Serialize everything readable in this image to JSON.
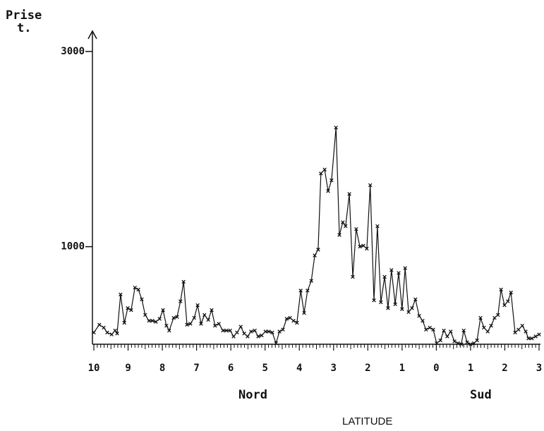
{
  "chart_data": {
    "type": "line",
    "ylabel": [
      "Prise",
      "t."
    ],
    "xlabel": "LATITUDE",
    "annotations": [
      "Nord",
      "Sud"
    ],
    "color": "#111111",
    "xlim": [
      10,
      -3
    ],
    "ylim": [
      0,
      3000
    ],
    "yticks": [
      1000,
      3000
    ],
    "xticks": [
      10,
      9,
      8,
      7,
      6,
      5,
      4,
      3,
      2,
      1,
      0,
      {
        "value": -1,
        "label": "1"
      },
      {
        "value": -2,
        "label": "2"
      },
      {
        "value": -3,
        "label": "3"
      }
    ],
    "series": [
      {
        "name": "Prise",
        "x": [
          10.0,
          9.84,
          9.71,
          9.61,
          9.48,
          9.38,
          9.32,
          9.22,
          9.11,
          9.01,
          8.91,
          8.8,
          8.7,
          8.6,
          8.5,
          8.39,
          8.29,
          8.19,
          8.08,
          7.98,
          7.88,
          7.8,
          7.67,
          7.57,
          7.47,
          7.38,
          7.28,
          7.18,
          7.07,
          6.97,
          6.87,
          6.77,
          6.66,
          6.56,
          6.46,
          6.35,
          6.23,
          6.13,
          6.02,
          5.92,
          5.82,
          5.71,
          5.61,
          5.51,
          5.41,
          5.3,
          5.2,
          5.1,
          4.99,
          4.89,
          4.79,
          4.68,
          4.58,
          4.48,
          4.37,
          4.27,
          4.17,
          4.07,
          3.96,
          3.86,
          3.76,
          3.65,
          3.55,
          3.45,
          3.37,
          3.26,
          3.16,
          3.06,
          2.93,
          2.83,
          2.73,
          2.65,
          2.54,
          2.44,
          2.34,
          2.23,
          2.13,
          2.03,
          1.93,
          1.82,
          1.72,
          1.62,
          1.51,
          1.41,
          1.31,
          1.2,
          1.1,
          1.0,
          0.91,
          0.81,
          0.71,
          0.61,
          0.5,
          0.4,
          0.3,
          0.19,
          0.09,
          -0.01,
          -0.12,
          -0.22,
          -0.32,
          -0.42,
          -0.53,
          -0.63,
          -0.73,
          -0.8,
          -0.9,
          -1.0,
          -1.1,
          -1.19,
          -1.29,
          -1.39,
          -1.5,
          -1.6,
          -1.7,
          -1.8,
          -1.89,
          -1.99,
          -2.09,
          -2.18,
          -2.3,
          -2.4,
          -2.51,
          -2.61,
          -2.69,
          -2.79,
          -2.9,
          -3.0
        ],
        "values": [
          120,
          200,
          170,
          120,
          100,
          140,
          110,
          510,
          220,
          370,
          350,
          580,
          560,
          460,
          300,
          240,
          240,
          230,
          260,
          350,
          190,
          140,
          270,
          280,
          440,
          640,
          200,
          210,
          270,
          400,
          210,
          300,
          250,
          350,
          190,
          210,
          140,
          140,
          140,
          80,
          120,
          180,
          110,
          80,
          130,
          140,
          80,
          90,
          130,
          130,
          120,
          10,
          130,
          150,
          260,
          270,
          240,
          220,
          550,
          320,
          550,
          650,
          910,
          970,
          1750,
          1790,
          1570,
          1680,
          2220,
          1120,
          1250,
          1210,
          1540,
          690,
          1180,
          1000,
          1010,
          980,
          1630,
          450,
          1210,
          430,
          690,
          370,
          760,
          410,
          730,
          360,
          780,
          330,
          370,
          460,
          290,
          240,
          150,
          170,
          150,
          10,
          40,
          140,
          80,
          130,
          30,
          10,
          0,
          140,
          20,
          0,
          10,
          40,
          270,
          170,
          130,
          190,
          270,
          300,
          560,
          400,
          440,
          530,
          120,
          150,
          190,
          130,
          60,
          60,
          80,
          100
        ]
      }
    ]
  }
}
